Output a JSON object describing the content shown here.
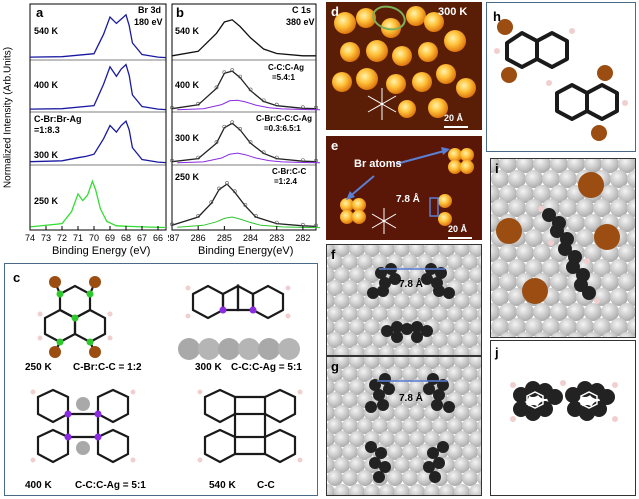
{
  "panel_a": {
    "label": "a",
    "title_line1": "Br 3d",
    "title_line2": "180 eV",
    "ylabel": "Normalized Intensity (Arb.Units)",
    "xlabel": "Binding Energy (eV)",
    "xticks": [
      "74",
      "73",
      "72",
      "71",
      "70",
      "69",
      "68",
      "67",
      "66"
    ],
    "temps": [
      "540 K",
      "400 K",
      "300 K",
      "250 K"
    ],
    "annotation_line1": "C-Br:Br-Ag",
    "annotation_line2": "=1:8.3"
  },
  "panel_b": {
    "label": "b",
    "title_line1": "C 1s",
    "title_line2": "380 eV",
    "xlabel": "Binding Energy(eV)",
    "xticks": [
      "287",
      "286",
      "285",
      "284",
      "283",
      "282"
    ],
    "temps": [
      "540 K",
      "400 K",
      "300 K",
      "250 K"
    ],
    "ann400_line1": "C-C:C-Ag",
    "ann400_line2": "=5.4:1",
    "ann300_line1": "C-Br:C-C:C-Ag",
    "ann300_line2": "=0.3:6.5:1",
    "ann250_line1": "C-Br:C-C",
    "ann250_line2": "=1:2.4"
  },
  "panel_c": {
    "label": "c",
    "cap1_temp": "250 K",
    "cap1_text": "C-Br:C-C = 1:2",
    "cap2_temp": "300 K",
    "cap2_text": "C-C:C-Ag = 5:1",
    "cap3_temp": "400 K",
    "cap3_text": "C-C:C-Ag = 5:1",
    "cap4_temp": "540 K",
    "cap4_text": "C-C"
  },
  "panel_d": {
    "label": "d",
    "temp": "300 K",
    "scale": "20 Å"
  },
  "panel_e": {
    "label": "e",
    "br_label": "Br atoms",
    "distance": "7.8 Å",
    "scale": "20 Å"
  },
  "panel_f": {
    "label": "f",
    "distance": "7.8 Å"
  },
  "panel_g": {
    "label": "g",
    "distance": "7.8 Å"
  },
  "panel_h": {
    "label": "h"
  },
  "panel_i": {
    "label": "i"
  },
  "panel_j": {
    "label": "j"
  },
  "chart_data": [
    {
      "type": "line",
      "panel": "a",
      "xlabel": "Binding Energy (eV)",
      "ylabel": "Normalized Intensity (Arb.Units)",
      "xlim": [
        74,
        65.5
      ],
      "series": [
        {
          "name": "540 K",
          "x": [
            74,
            72,
            70,
            69.4,
            69,
            68.6,
            68.3,
            68,
            67.8,
            67.6,
            67,
            66,
            65.5
          ],
          "y": [
            0.02,
            0.03,
            0.1,
            0.55,
            0.95,
            0.8,
            0.9,
            1.0,
            0.75,
            0.35,
            0.08,
            0.02,
            0.01
          ]
        },
        {
          "name": "400 K",
          "x": [
            74,
            72,
            70,
            69.4,
            69,
            68.6,
            68.3,
            68,
            67.8,
            67.6,
            67,
            66,
            65.5
          ],
          "y": [
            0.02,
            0.03,
            0.1,
            0.6,
            1.0,
            0.78,
            0.95,
            1.05,
            0.8,
            0.35,
            0.08,
            0.02,
            0.01
          ]
        },
        {
          "name": "300 K",
          "x": [
            74,
            72,
            71,
            70.5,
            70,
            69.4,
            69,
            68.6,
            68.3,
            68,
            67.8,
            67.6,
            67,
            66,
            65.5
          ],
          "y": [
            0.03,
            0.05,
            0.12,
            0.15,
            0.2,
            0.55,
            0.85,
            0.7,
            0.85,
            0.95,
            0.75,
            0.35,
            0.08,
            0.02,
            0.01
          ]
        },
        {
          "name": "250 K",
          "x": [
            74,
            72,
            71.4,
            71,
            70.7,
            70.4,
            70.1,
            69.9,
            69.6,
            69.2,
            68.6,
            67,
            65.5
          ],
          "y": [
            0.02,
            0.08,
            0.3,
            0.62,
            0.5,
            0.6,
            0.85,
            0.7,
            0.35,
            0.12,
            0.04,
            0.02,
            0.01
          ]
        }
      ]
    },
    {
      "type": "line",
      "panel": "b",
      "xlabel": "Binding Energy(eV)",
      "xlim": [
        287,
        281.5
      ],
      "series": [
        {
          "name": "540 K",
          "x": [
            287,
            286,
            285.3,
            285,
            284.7,
            284.4,
            284,
            283.5,
            283,
            282,
            281.5
          ],
          "y": [
            0.05,
            0.15,
            0.55,
            0.8,
            0.85,
            0.7,
            0.45,
            0.2,
            0.1,
            0.05,
            0.05
          ]
        },
        {
          "name": "400 K",
          "x": [
            287,
            286,
            285.3,
            285,
            284.7,
            284.4,
            284,
            283.5,
            283,
            282,
            281.5
          ],
          "y": [
            0.03,
            0.12,
            0.5,
            0.85,
            0.9,
            0.75,
            0.45,
            0.2,
            0.1,
            0.04,
            0.03
          ]
        },
        {
          "name": "300 K",
          "x": [
            287,
            286,
            285.3,
            285,
            284.7,
            284.4,
            284,
            283.5,
            283,
            282,
            281.5
          ],
          "y": [
            0.03,
            0.1,
            0.45,
            0.8,
            0.9,
            0.75,
            0.45,
            0.22,
            0.1,
            0.04,
            0.03
          ]
        },
        {
          "name": "250 K",
          "x": [
            287,
            286,
            285.5,
            285.2,
            284.9,
            284.6,
            284.2,
            283.8,
            283,
            282,
            281.5
          ],
          "y": [
            0.05,
            0.2,
            0.45,
            0.7,
            0.8,
            0.65,
            0.4,
            0.2,
            0.08,
            0.04,
            0.03
          ]
        }
      ]
    }
  ]
}
